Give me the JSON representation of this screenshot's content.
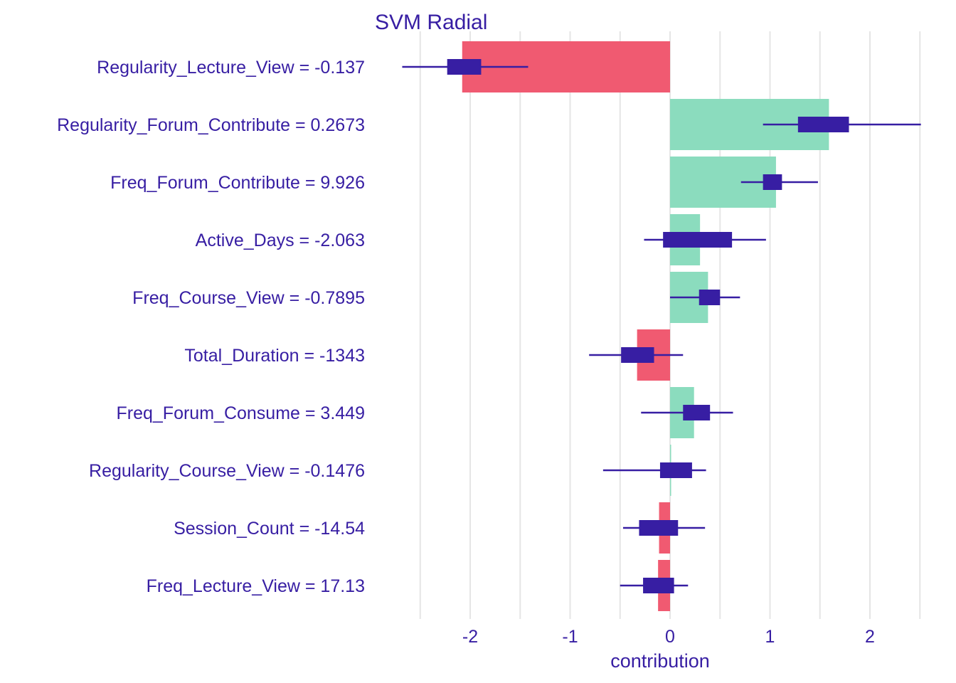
{
  "chart_data": {
    "type": "bar",
    "title": "SVM Radial",
    "xlabel": "contribution",
    "ylabel": "",
    "xlim": [
      -2.5,
      2.5
    ],
    "xticks": [
      -2,
      -1,
      0,
      1,
      2
    ],
    "xtick_labels": [
      "-2",
      "-1",
      "0",
      "1",
      "2"
    ],
    "grid": true,
    "categories": [
      "Regularity_Lecture_View = -0.137",
      "Regularity_Forum_Contribute = 0.2673",
      "Freq_Forum_Contribute = 9.926",
      "Active_Days = -2.063",
      "Freq_Course_View = -0.7895",
      "Total_Duration = -1343",
      "Freq_Forum_Consume = 3.449",
      "Regularity_Course_View = -0.1476",
      "Session_Count = -14.54",
      "Freq_Lecture_View = 17.13"
    ],
    "values": [
      -2.08,
      1.59,
      1.06,
      0.3,
      0.38,
      -0.33,
      0.24,
      0.01,
      -0.11,
      -0.12
    ],
    "boxplots": [
      {
        "min": -2.68,
        "q1": -2.23,
        "q3": -1.89,
        "max": -1.42
      },
      {
        "min": 0.93,
        "q1": 1.28,
        "q3": 1.79,
        "max": 2.51
      },
      {
        "min": 0.71,
        "q1": 0.93,
        "q3": 1.12,
        "max": 1.48
      },
      {
        "min": -0.26,
        "q1": -0.07,
        "q3": 0.62,
        "max": 0.96
      },
      {
        "min": 0.0,
        "q1": 0.29,
        "q3": 0.5,
        "max": 0.7
      },
      {
        "min": -0.81,
        "q1": -0.49,
        "q3": -0.16,
        "max": 0.13
      },
      {
        "min": -0.29,
        "q1": 0.13,
        "q3": 0.4,
        "max": 0.63
      },
      {
        "min": -0.67,
        "q1": -0.1,
        "q3": 0.22,
        "max": 0.36
      },
      {
        "min": -0.47,
        "q1": -0.31,
        "q3": 0.08,
        "max": 0.35
      },
      {
        "min": -0.5,
        "q1": -0.27,
        "q3": 0.04,
        "max": 0.18
      }
    ],
    "colors": {
      "positive": "#8bdcbe",
      "negative": "#f05a71",
      "boxplot": "#371ea3",
      "text": "#371ea3",
      "grid": "#e5e5e5"
    }
  }
}
